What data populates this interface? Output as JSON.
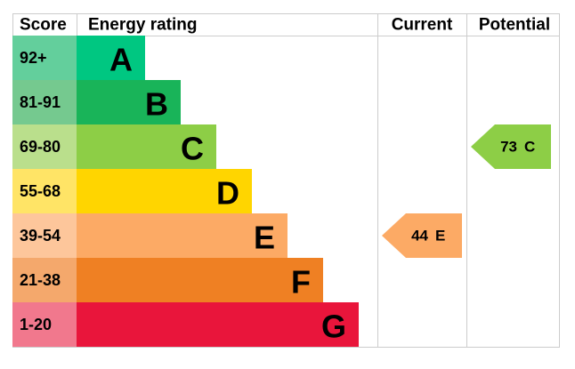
{
  "header": {
    "score": "Score",
    "rating": "Energy rating",
    "current": "Current",
    "potential": "Potential"
  },
  "bands": [
    {
      "score": "92+",
      "letter": "A",
      "color": "#00c781",
      "light": "#63cf9c"
    },
    {
      "score": "81-91",
      "letter": "B",
      "color": "#19b459",
      "light": "#75c98f"
    },
    {
      "score": "69-80",
      "letter": "C",
      "color": "#8dce46",
      "light": "#badf8c"
    },
    {
      "score": "55-68",
      "letter": "D",
      "color": "#ffd500",
      "light": "#ffe466"
    },
    {
      "score": "39-54",
      "letter": "E",
      "color": "#fcaa65",
      "light": "#fdc69b"
    },
    {
      "score": "21-38",
      "letter": "F",
      "color": "#ef8023",
      "light": "#f4a86c"
    },
    {
      "score": "1-20",
      "letter": "G",
      "color": "#e9153b",
      "light": "#f1788d"
    }
  ],
  "current": {
    "score": 44,
    "rating": "E"
  },
  "potential": {
    "score": 73,
    "rating": "C"
  }
}
